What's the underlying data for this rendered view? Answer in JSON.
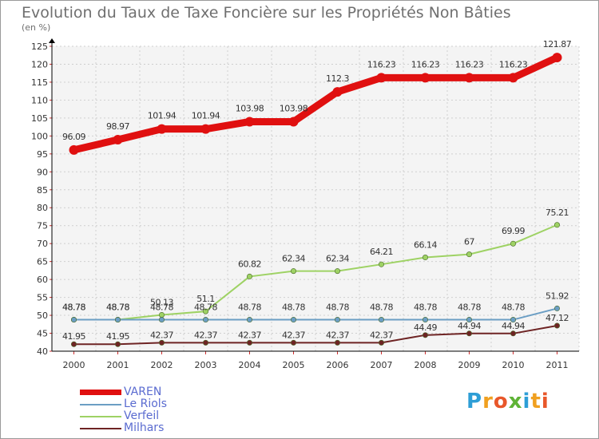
{
  "chart_data": {
    "type": "line",
    "title": "Evolution du Taux de Taxe Foncière sur les Propriétés Non Bâties",
    "subtitle": "(en %)",
    "xlabel": "",
    "ylabel": "",
    "ylim": [
      40,
      125
    ],
    "yticks": [
      40,
      45,
      50,
      55,
      60,
      65,
      70,
      75,
      80,
      85,
      90,
      95,
      100,
      105,
      110,
      115,
      120,
      125
    ],
    "categories": [
      "2000",
      "2001",
      "2002",
      "2003",
      "2004",
      "2005",
      "2006",
      "2007",
      "2008",
      "2009",
      "2010",
      "2011"
    ],
    "series": [
      {
        "name": "VAREN",
        "color": "#e01010",
        "values": [
          96.09,
          98.97,
          101.94,
          101.94,
          103.98,
          103.98,
          112.3,
          116.23,
          116.23,
          116.23,
          116.23,
          121.87
        ],
        "labels": [
          "96.09",
          "98.97",
          "101.94",
          "101.94",
          "103.98",
          "103.98",
          "112.3",
          "116.23",
          "116.23",
          "116.23",
          "116.23",
          "121.87"
        ]
      },
      {
        "name": "Le Riols",
        "color": "#6b9ec4",
        "values": [
          48.78,
          48.78,
          48.78,
          48.78,
          48.78,
          48.78,
          48.78,
          48.78,
          48.78,
          48.78,
          48.78,
          51.92
        ],
        "labels": [
          "48.78",
          "48.78",
          "48.78",
          "48.78",
          "48.78",
          "48.78",
          "48.78",
          "48.78",
          "48.78",
          "48.78",
          "48.78",
          "51.92"
        ]
      },
      {
        "name": "Verfeil",
        "color": "#9ed264",
        "values": [
          48.78,
          48.78,
          50.13,
          51.1,
          60.82,
          62.34,
          62.34,
          64.21,
          66.14,
          67,
          69.99,
          75.21
        ],
        "labels": [
          "48.78",
          "48.78",
          "50.13",
          "51.1",
          "60.82",
          "62.34",
          "62.34",
          "64.21",
          "66.14",
          "67",
          "69.99",
          "75.21"
        ]
      },
      {
        "name": "Milhars",
        "color": "#6e2424",
        "values": [
          41.95,
          41.95,
          42.37,
          42.37,
          42.37,
          42.37,
          42.37,
          42.37,
          44.49,
          44.94,
          44.94,
          47.12
        ],
        "labels": [
          "41.95",
          "41.95",
          "42.37",
          "42.37",
          "42.37",
          "42.37",
          "42.37",
          "42.37",
          "44.49",
          "44.94",
          "44.94",
          "47.12"
        ]
      }
    ],
    "grid": true,
    "legend_position": "bottom-left"
  },
  "branding": {
    "logo_letters": [
      "P",
      "r",
      "o",
      "x",
      "i",
      "t",
      "i"
    ],
    "logo_colors": [
      "#2e9ed6",
      "#f0a020",
      "#e8572a",
      "#5fb336",
      "#2e9ed6",
      "#f0a020",
      "#e8572a"
    ]
  }
}
